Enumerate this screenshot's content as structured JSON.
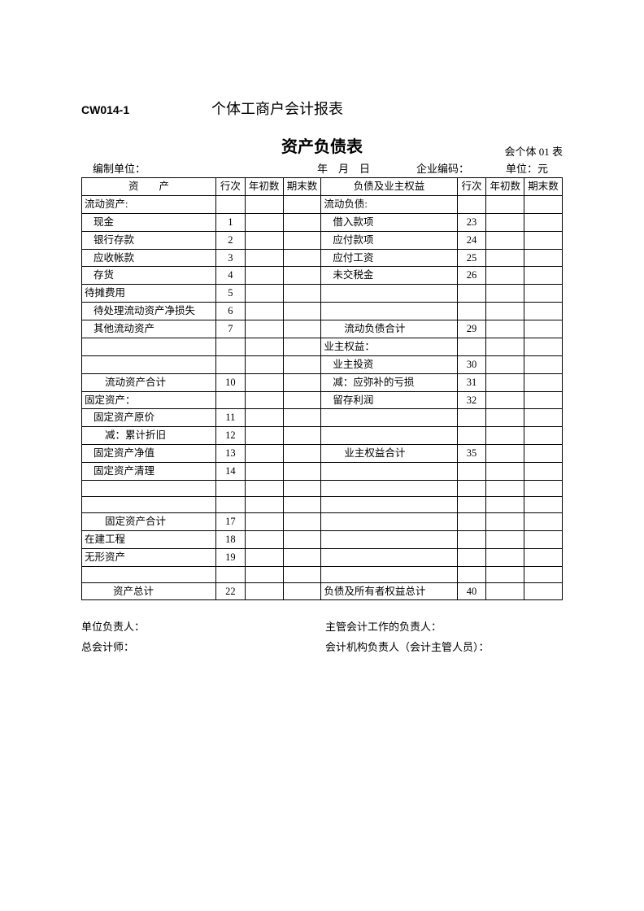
{
  "header": {
    "form_code": "CW014-1",
    "doc_title": "个体工商户会计报表",
    "main_title": "资产负债表",
    "form_id": "会个体 01 表",
    "prepared_by_label": "编制单位：",
    "date_label": "年　月　日",
    "enterprise_code_label": "企业编码：",
    "unit_label": "单位：元"
  },
  "table": {
    "headers": {
      "assets": "资　　产",
      "row_no": "行次",
      "begin": "年初数",
      "end": "期末数",
      "liabilities": "负债及业主权益"
    },
    "rows": [
      {
        "a": "流动资产:",
        "an": "",
        "l": "流动负债:",
        "ln": "",
        "ai": 0,
        "li": 0
      },
      {
        "a": "现金",
        "an": "1",
        "l": "借入款项",
        "ln": "23",
        "ai": 1,
        "li": 1
      },
      {
        "a": "银行存款",
        "an": "2",
        "l": "应付款项",
        "ln": "24",
        "ai": 1,
        "li": 1
      },
      {
        "a": "应收帐款",
        "an": "3",
        "l": "应付工资",
        "ln": "25",
        "ai": 1,
        "li": 1
      },
      {
        "a": "存货",
        "an": "4",
        "l": "未交税金",
        "ln": "26",
        "ai": 1,
        "li": 1
      },
      {
        "a": "待摊费用",
        "an": "5",
        "l": "",
        "ln": "",
        "ai": 0,
        "li": 0
      },
      {
        "a": "待处理流动资产净损失",
        "an": "6",
        "l": "",
        "ln": "",
        "ai": 1,
        "li": 0
      },
      {
        "a": "其他流动资产",
        "an": "7",
        "l": "流动负债合计",
        "ln": "29",
        "ai": 1,
        "li": 2
      },
      {
        "a": "",
        "an": "",
        "l": "业主权益：",
        "ln": "",
        "ai": 0,
        "li": 0
      },
      {
        "a": "",
        "an": "",
        "l": "业主投资",
        "ln": "30",
        "ai": 0,
        "li": 1
      },
      {
        "a": "流动资产合计",
        "an": "10",
        "l": "减：应弥补的亏损",
        "ln": "31",
        "ai": 2,
        "li": 1
      },
      {
        "a": "固定资产：",
        "an": "",
        "l": "留存利润",
        "ln": "32",
        "ai": 0,
        "li": 1
      },
      {
        "a": "固定资产原价",
        "an": "11",
        "l": "",
        "ln": "",
        "ai": 1,
        "li": 0
      },
      {
        "a": "减：累计折旧",
        "an": "12",
        "l": "",
        "ln": "",
        "ai": 2,
        "li": 0
      },
      {
        "a": "固定资产净值",
        "an": "13",
        "l": "业主权益合计",
        "ln": "35",
        "ai": 1,
        "li": 2
      },
      {
        "a": "固定资产清理",
        "an": "14",
        "l": "",
        "ln": "",
        "ai": 1,
        "li": 0
      },
      {
        "a": "",
        "an": "",
        "l": "",
        "ln": "",
        "ai": 0,
        "li": 0
      },
      {
        "a": "",
        "an": "",
        "l": "",
        "ln": "",
        "ai": 0,
        "li": 0
      },
      {
        "a": "固定资产合计",
        "an": "17",
        "l": "",
        "ln": "",
        "ai": 2,
        "li": 0
      },
      {
        "a": "在建工程",
        "an": "18",
        "l": "",
        "ln": "",
        "ai": 0,
        "li": 0
      },
      {
        "a": "无形资产",
        "an": "19",
        "l": "",
        "ln": "",
        "ai": 0,
        "li": 0
      },
      {
        "a": "",
        "an": "",
        "l": "",
        "ln": "",
        "ai": 0,
        "li": 0
      },
      {
        "a": "资产总计",
        "an": "22",
        "l": "负债及所有者权益总计",
        "ln": "40",
        "ai": 3,
        "li": 0
      }
    ]
  },
  "footer": {
    "unit_manager": "单位负责人：",
    "accounting_manager": "主管会计工作的负责人：",
    "chief_accountant": "总会计师：",
    "accounting_org": "会计机构负责人（会计主管人员）："
  }
}
